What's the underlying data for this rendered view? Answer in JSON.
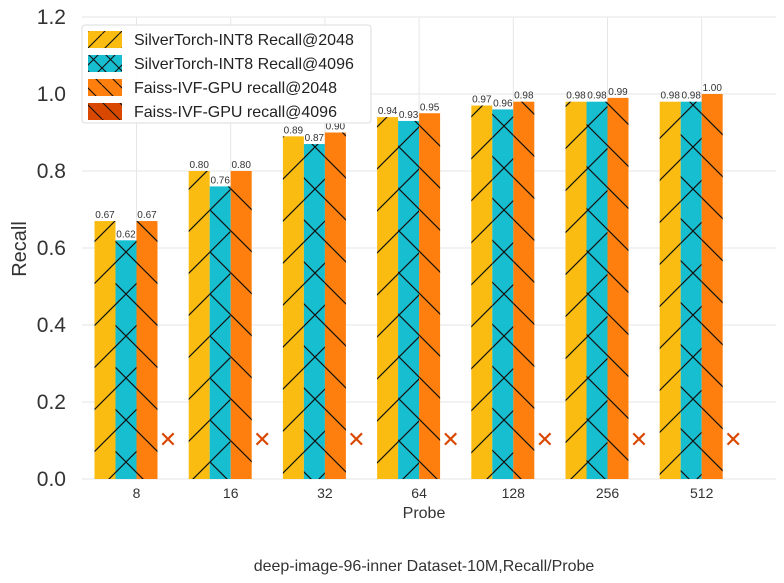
{
  "chart_data": {
    "type": "bar",
    "caption": "deep-image-96-inner Dataset-10M,Recall/Probe",
    "xlabel": "Probe",
    "ylabel": "Recall",
    "ylim": [
      0,
      1.2
    ],
    "yticks": [
      "0.0",
      "0.2",
      "0.4",
      "0.6",
      "0.8",
      "1.0",
      "1.2"
    ],
    "grid": true,
    "legend_position": "top-left",
    "categories": [
      "8",
      "16",
      "32",
      "64",
      "128",
      "256",
      "512"
    ],
    "series": [
      {
        "name": "SilverTorch-INT8 Recall@2048",
        "color": "#fbbc12",
        "hatch": "diagonal",
        "values": [
          0.67,
          0.8,
          0.89,
          0.94,
          0.97,
          0.98,
          0.98
        ],
        "labels": [
          "0.67",
          "0.80",
          "0.89",
          "0.94",
          "0.97",
          "0.98",
          "0.98"
        ]
      },
      {
        "name": "SilverTorch-INT8 Recall@4096",
        "color": "#17becf",
        "hatch": "cross",
        "values": [
          0.62,
          0.76,
          0.87,
          0.93,
          0.96,
          0.98,
          0.98
        ],
        "labels": [
          "0.62",
          "0.76",
          "0.87",
          "0.93",
          "0.96",
          "0.98",
          "0.98"
        ]
      },
      {
        "name": "Faiss-IVF-GPU recall@2048",
        "color": "#ff7f0e",
        "hatch": "backslash",
        "values": [
          0.67,
          0.8,
          0.9,
          0.95,
          0.98,
          0.99,
          1.0
        ],
        "labels": [
          "0.67",
          "0.80",
          "0.90",
          "0.95",
          "0.98",
          "0.99",
          "1.00"
        ]
      },
      {
        "name": "Faiss-IVF-GPU recall@4096",
        "color": "#d94801",
        "hatch": "backslash",
        "values": [
          null,
          null,
          null,
          null,
          null,
          null,
          null
        ],
        "labels": [],
        "missing_marker": "✕"
      }
    ]
  }
}
